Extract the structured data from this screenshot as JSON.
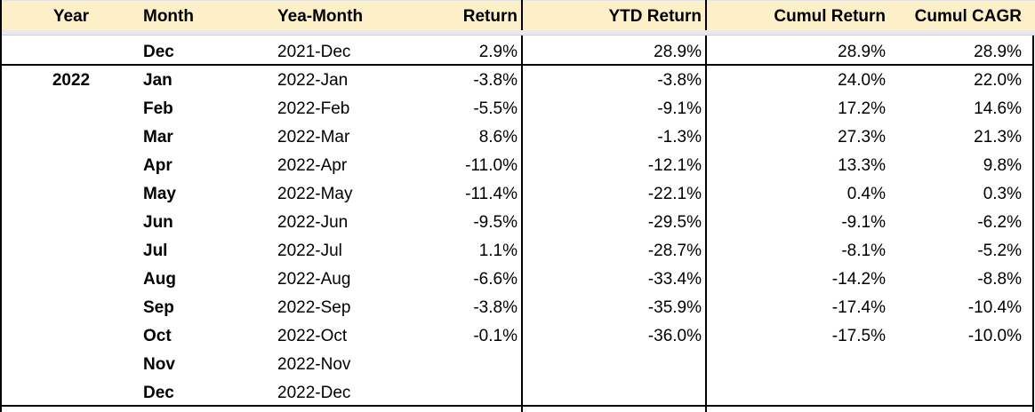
{
  "headers": {
    "year": "Year",
    "month": "Month",
    "year_month": "Yea-Month",
    "return": "Return",
    "ytd_return": "YTD Return",
    "cumul_return": "Cumul Return",
    "cumul_cagr": "Cumul CAGR"
  },
  "rows": [
    {
      "year": "",
      "month": "Dec",
      "year_month": "2021-Dec",
      "return": "2.9%",
      "ytd_return": "28.9%",
      "cumul_return": "28.9%",
      "cumul_cagr": "28.9%"
    },
    {
      "year": "2022",
      "month": "Jan",
      "year_month": "2022-Jan",
      "return": "-3.8%",
      "ytd_return": "-3.8%",
      "cumul_return": "24.0%",
      "cumul_cagr": "22.0%"
    },
    {
      "year": "",
      "month": "Feb",
      "year_month": "2022-Feb",
      "return": "-5.5%",
      "ytd_return": "-9.1%",
      "cumul_return": "17.2%",
      "cumul_cagr": "14.6%"
    },
    {
      "year": "",
      "month": "Mar",
      "year_month": "2022-Mar",
      "return": "8.6%",
      "ytd_return": "-1.3%",
      "cumul_return": "27.3%",
      "cumul_cagr": "21.3%"
    },
    {
      "year": "",
      "month": "Apr",
      "year_month": "2022-Apr",
      "return": "-11.0%",
      "ytd_return": "-12.1%",
      "cumul_return": "13.3%",
      "cumul_cagr": "9.8%"
    },
    {
      "year": "",
      "month": "May",
      "year_month": "2022-May",
      "return": "-11.4%",
      "ytd_return": "-22.1%",
      "cumul_return": "0.4%",
      "cumul_cagr": "0.3%"
    },
    {
      "year": "",
      "month": "Jun",
      "year_month": "2022-Jun",
      "return": "-9.5%",
      "ytd_return": "-29.5%",
      "cumul_return": "-9.1%",
      "cumul_cagr": "-6.2%"
    },
    {
      "year": "",
      "month": "Jul",
      "year_month": "2022-Jul",
      "return": "1.1%",
      "ytd_return": "-28.7%",
      "cumul_return": "-8.1%",
      "cumul_cagr": "-5.2%"
    },
    {
      "year": "",
      "month": "Aug",
      "year_month": "2022-Aug",
      "return": "-6.6%",
      "ytd_return": "-33.4%",
      "cumul_return": "-14.2%",
      "cumul_cagr": "-8.8%"
    },
    {
      "year": "",
      "month": "Sep",
      "year_month": "2022-Sep",
      "return": "-3.8%",
      "ytd_return": "-35.9%",
      "cumul_return": "-17.4%",
      "cumul_cagr": "-10.4%"
    },
    {
      "year": "",
      "month": "Oct",
      "year_month": "2022-Oct",
      "return": "-0.1%",
      "ytd_return": "-36.0%",
      "cumul_return": "-17.5%",
      "cumul_cagr": "-10.0%"
    },
    {
      "year": "",
      "month": "Nov",
      "year_month": "2022-Nov",
      "return": "",
      "ytd_return": "",
      "cumul_return": "",
      "cumul_cagr": ""
    },
    {
      "year": "",
      "month": "Dec",
      "year_month": "2022-Dec",
      "return": "",
      "ytd_return": "",
      "cumul_return": "",
      "cumul_cagr": ""
    }
  ],
  "colors": {
    "header_bg": "#fdf0c8",
    "freeze_bar": "#e9e9ec",
    "border": "#000000"
  }
}
